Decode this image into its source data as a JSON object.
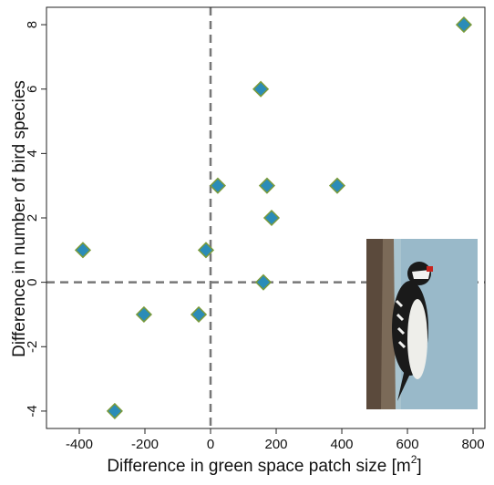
{
  "chart_data": {
    "type": "scatter",
    "xlabel": "Difference in green space patch size [m",
    "xlabel_sup": "2",
    "xlabel_end": "]",
    "ylabel": "Difference in number of bird species",
    "x": [
      772,
      153,
      22,
      172,
      386,
      186,
      -389,
      -14,
      161,
      -203,
      -36,
      -292
    ],
    "values": [
      8,
      6,
      3,
      3,
      3,
      2,
      1,
      1,
      0,
      -1,
      -1,
      -4
    ],
    "color": "#2b8cb8",
    "edge_color": "#7a9a3a",
    "xlim": [
      -500,
      836
    ],
    "ylim": [
      -4.54,
      8.54
    ],
    "xticks": [
      -400,
      -200,
      0,
      200,
      400,
      600,
      800
    ],
    "yticks": [
      -4,
      -2,
      0,
      2,
      4,
      6,
      8
    ],
    "zero_lines": true
  }
}
